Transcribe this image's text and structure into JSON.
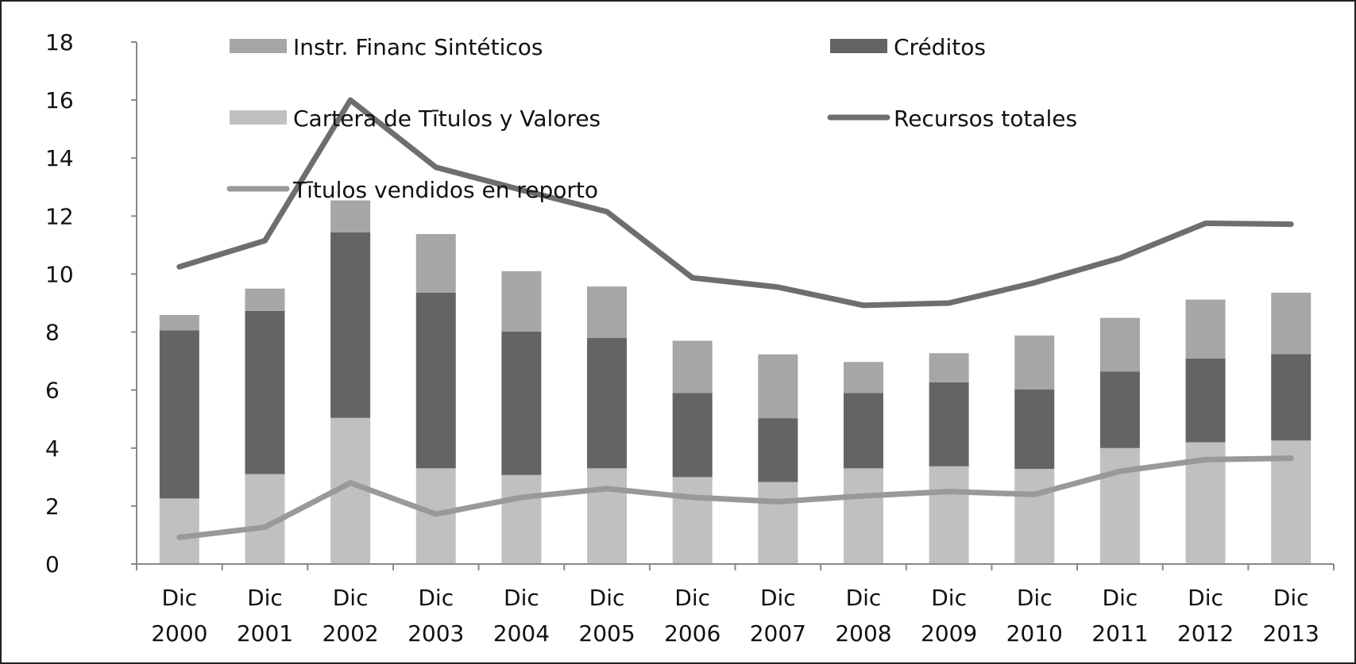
{
  "chart_data": {
    "type": "bar",
    "stacked": true,
    "categories": [
      [
        "Dic",
        "2000"
      ],
      [
        "Dic",
        "2001"
      ],
      [
        "Dic",
        "2002"
      ],
      [
        "Dic",
        "2003"
      ],
      [
        "Dic",
        "2004"
      ],
      [
        "Dic",
        "2005"
      ],
      [
        "Dic",
        "2006"
      ],
      [
        "Dic",
        "2007"
      ],
      [
        "Dic",
        "2008"
      ],
      [
        "Dic",
        "2009"
      ],
      [
        "Dic",
        "2010"
      ],
      [
        "Dic",
        "2011"
      ],
      [
        "Dic",
        "2012"
      ],
      [
        "Dic",
        "2013"
      ]
    ],
    "ylim": [
      0,
      18
    ],
    "yticks": [
      0,
      2,
      4,
      6,
      8,
      10,
      12,
      14,
      16,
      18
    ],
    "grid": false,
    "legend_placement": "top",
    "bar_series": [
      {
        "name": "Cartera de Tītulos y Valores",
        "color": "#c0c0c0",
        "values": [
          2.26,
          3.1,
          5.04,
          3.3,
          3.07,
          3.3,
          3.0,
          2.83,
          3.3,
          3.37,
          3.28,
          4.0,
          4.2,
          4.26
        ]
      },
      {
        "name": "Créditos",
        "color": "#646464",
        "values": [
          5.8,
          5.63,
          6.4,
          6.06,
          4.95,
          4.5,
          2.9,
          2.2,
          2.6,
          2.9,
          2.74,
          2.64,
          2.89,
          2.98
        ]
      },
      {
        "name": "Instr. Financ Sintéticos",
        "color": "#a6a6a6",
        "values": [
          0.53,
          0.77,
          1.1,
          2.02,
          2.08,
          1.77,
          1.8,
          2.2,
          1.07,
          1.0,
          1.86,
          1.85,
          2.03,
          2.12
        ]
      }
    ],
    "line_series": [
      {
        "name": "Recursos totales",
        "color": "#6e6e6e",
        "values": [
          10.25,
          11.15,
          16.0,
          13.68,
          12.9,
          12.15,
          9.87,
          9.55,
          8.92,
          9.0,
          9.7,
          10.55,
          11.75,
          11.72
        ]
      },
      {
        "name": "Tītulos vendidos en reporto",
        "color": "#999999",
        "values": [
          0.92,
          1.27,
          2.8,
          1.72,
          2.3,
          2.6,
          2.3,
          2.15,
          2.35,
          2.5,
          2.4,
          3.2,
          3.6,
          3.65
        ]
      }
    ],
    "legend": [
      {
        "label": "Instr. Financ Sintéticos",
        "kind": "bar",
        "color": "#a6a6a6"
      },
      {
        "label": "Créditos",
        "kind": "bar",
        "color": "#646464"
      },
      {
        "label": "Cartera de Tītulos y Valores",
        "kind": "bar",
        "color": "#c0c0c0"
      },
      {
        "label": "Recursos totales",
        "kind": "line",
        "color": "#6e6e6e"
      },
      {
        "label": "Tītulos vendidos en reporto",
        "kind": "line",
        "color": "#999999"
      }
    ]
  }
}
